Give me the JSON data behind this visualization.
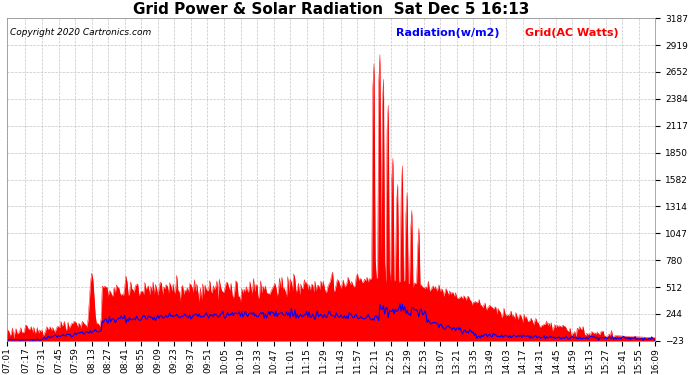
{
  "title": "Grid Power & Solar Radiation  Sat Dec 5 16:13",
  "copyright": "Copyright 2020 Cartronics.com",
  "legend_radiation": "Radiation(w/m2)",
  "legend_grid": "Grid(AC Watts)",
  "radiation_color": "#FF0000",
  "grid_color": "#0000FF",
  "background_color": "#FFFFFF",
  "plot_bg_color": "#FFFFFF",
  "grid_line_color": "#C0C0C0",
  "ylim": [
    -23.0,
    3186.9
  ],
  "yticks": [
    -23.0,
    244.5,
    512.0,
    779.5,
    1047.0,
    1314.5,
    1582.0,
    1849.5,
    2117.0,
    2384.5,
    2652.0,
    2919.4,
    3186.9
  ],
  "title_fontsize": 11,
  "tick_fontsize": 6.5,
  "legend_fontsize": 8,
  "copyright_fontsize": 6.5,
  "xtick_labels": [
    "07:01",
    "07:17",
    "07:31",
    "07:45",
    "07:59",
    "08:13",
    "08:27",
    "08:41",
    "08:55",
    "09:09",
    "09:23",
    "09:37",
    "09:51",
    "10:05",
    "10:19",
    "10:33",
    "10:47",
    "11:01",
    "11:15",
    "11:29",
    "11:43",
    "11:57",
    "12:11",
    "12:25",
    "12:39",
    "12:53",
    "13:07",
    "13:21",
    "13:35",
    "13:49",
    "14:03",
    "14:17",
    "14:31",
    "14:45",
    "14:59",
    "15:13",
    "15:27",
    "15:41",
    "15:55",
    "16:09"
  ]
}
